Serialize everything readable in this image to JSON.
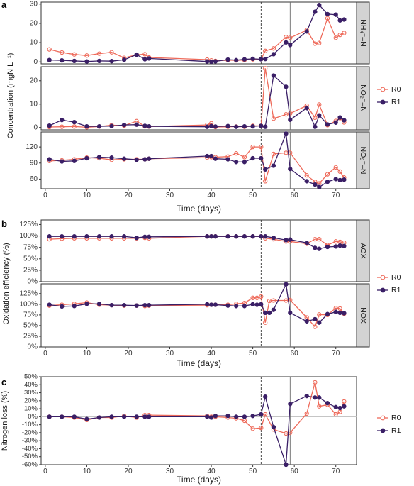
{
  "colors": {
    "R0": "#ee6a5a",
    "R1": "#3a1f66",
    "grid": "#cccccc",
    "strip": "#d3d3d3",
    "axis": "#333333",
    "zeroline": "#bdbdbd"
  },
  "chart_data": [
    {
      "panel": "a",
      "type": "line",
      "ylabel": "Concentration (mgN L⁻¹)",
      "xlabel": "Time (days)",
      "legend": {
        "position": "right",
        "entries": [
          "R0",
          "R1"
        ]
      },
      "vlines": [
        52,
        59
      ],
      "xlim": [
        -1,
        75
      ],
      "xticks": [
        "0",
        "10",
        "20",
        "30",
        "40",
        "50",
        "60",
        "70"
      ],
      "x": [
        1,
        4,
        7,
        10,
        13,
        16,
        19,
        22,
        24,
        25,
        39,
        40,
        41,
        44,
        46,
        48,
        50,
        52,
        53,
        55,
        58,
        59,
        63,
        65,
        66,
        68,
        70,
        71,
        72
      ],
      "facets": [
        {
          "strip": "NH₄⁺–N",
          "ylim": [
            -1,
            31
          ],
          "yticks": [
            "0",
            "10",
            "20",
            "30"
          ],
          "series": [
            {
              "name": "R0",
              "values": [
                6.5,
                4.9,
                3.9,
                3.3,
                4.3,
                5.0,
                2.1,
                3.7,
                4.0,
                2.3,
                1.2,
                0.8,
                0.5,
                0.9,
                0.8,
                1.0,
                1.3,
                1.4,
                5.7,
                7.0,
                12.9,
                12.5,
                16.5,
                9.5,
                9.8,
                22.6,
                12.5,
                14.0,
                15.0
              ]
            },
            {
              "name": "R1",
              "values": [
                1.0,
                0.8,
                0.5,
                0.2,
                0.5,
                0.4,
                1.1,
                3.8,
                1.4,
                1.8,
                0.2,
                0.1,
                0.3,
                1.2,
                0.9,
                1.3,
                1.6,
                1.4,
                1.5,
                4.0,
                10.1,
                8.8,
                15.8,
                26.0,
                29.5,
                24.8,
                24.5,
                21.5,
                22.0
              ]
            }
          ]
        },
        {
          "strip": "NO₂⁻–N",
          "ylim": [
            -1,
            26
          ],
          "yticks": [
            "0",
            "10",
            "20"
          ],
          "series": [
            {
              "name": "R0",
              "values": [
                0.2,
                0.3,
                0.4,
                0.1,
                0.4,
                1.0,
                0.8,
                2.7,
                0.5,
                0.4,
                1.1,
                1.8,
                0.2,
                0.3,
                0.4,
                0.3,
                0.7,
                0.7,
                25.3,
                3.8,
                5.6,
                6.0,
                9.3,
                4.2,
                9.8,
                1.0,
                2.8,
                4.0,
                2.2
              ]
            },
            {
              "name": "R1",
              "values": [
                0.8,
                3.2,
                2.3,
                0.5,
                0.5,
                0.6,
                1.1,
                1.2,
                0.7,
                0.5,
                0.3,
                0.6,
                0.4,
                0.6,
                0.3,
                0.5,
                0.5,
                0.7,
                0.3,
                22.2,
                17.4,
                3.3,
                8.3,
                0.3,
                5.2,
                1.3,
                2.1,
                4.3,
                3.1
              ]
            }
          ]
        },
        {
          "strip": "NO₃⁻–N",
          "ylim": [
            42,
            148
          ],
          "yticks": [
            "60",
            "90",
            "120"
          ],
          "series": [
            {
              "name": "R0",
              "values": [
                94,
                95,
                97,
                100,
                99,
                96,
                97,
                97,
                97,
                98,
                100,
                101,
                101,
                102,
                108,
                101,
                120,
                120,
                56,
                107,
                109,
                109,
                67,
                55,
                52,
                69,
                82,
                74,
                63
              ]
            },
            {
              "name": "R1",
              "values": [
                97,
                93,
                94,
                99,
                101,
                100,
                98,
                96,
                97,
                98,
                103,
                103,
                98,
                97,
                92,
                92,
                99,
                99,
                78,
                85,
                145,
                79,
                56,
                50,
                45,
                55,
                60,
                58,
                59
              ]
            }
          ]
        }
      ]
    },
    {
      "panel": "b",
      "type": "line",
      "ylabel": "Oxidation efficiency (%)",
      "xlabel": "Time (days)",
      "legend": {
        "position": "right",
        "entries": [
          "R0",
          "R1"
        ]
      },
      "vlines": [
        52,
        59
      ],
      "xlim": [
        -1,
        75
      ],
      "xticks": [
        "0",
        "10",
        "20",
        "30",
        "40",
        "50",
        "60",
        "70"
      ],
      "facets": [
        {
          "strip": "AOX",
          "ylim": [
            0,
            135
          ],
          "yticks": [
            "0%",
            "25%",
            "50%",
            "75%",
            "100%",
            "125%"
          ],
          "x": [
            1,
            4,
            7,
            10,
            13,
            16,
            19,
            22,
            24,
            25,
            39,
            40,
            41,
            44,
            46,
            48,
            50,
            52,
            53,
            55,
            58,
            59,
            63,
            65,
            66,
            68,
            70,
            71,
            72
          ],
          "series": [
            {
              "name": "R0",
              "values": [
                93,
                94,
                95,
                95,
                95,
                95,
                95,
                95,
                96,
                95,
                99,
                99,
                99,
                99,
                99,
                99,
                99,
                99,
                95,
                93,
                88,
                88,
                83,
                93,
                93,
                80,
                88,
                87,
                85
              ]
            },
            {
              "name": "R1",
              "values": [
                99,
                99,
                99,
                99,
                99,
                99,
                99,
                96,
                98,
                98,
                99,
                99,
                99,
                99,
                99,
                99,
                99,
                99,
                99,
                96,
                91,
                92,
                85,
                74,
                72,
                76,
                77,
                79,
                78
              ]
            }
          ]
        },
        {
          "strip": "NOX",
          "ylim": [
            0,
            148
          ],
          "yticks": [
            "0%",
            "25%",
            "50%",
            "75%",
            "100%",
            "125%"
          ],
          "x": [
            1,
            4,
            7,
            10,
            13,
            16,
            19,
            22,
            24,
            25,
            39,
            40,
            41,
            44,
            46,
            48,
            50,
            51,
            52,
            53,
            54,
            55,
            58,
            59,
            63,
            65,
            66,
            68,
            70,
            71,
            72
          ],
          "series": [
            {
              "name": "R0",
              "values": [
                97,
                99,
                101,
                104,
                99,
                98,
                97,
                97,
                96,
                97,
                98,
                99,
                99,
                99,
                101,
                103,
                115,
                115,
                118,
                57,
                108,
                109,
                109,
                110,
                69,
                47,
                76,
                75,
                91,
                90,
                78
              ]
            },
            {
              "name": "R1",
              "values": [
                99,
                95,
                96,
                101,
                101,
                98,
                98,
                97,
                98,
                98,
                100,
                99,
                99,
                97,
                96,
                96,
                100,
                99,
                100,
                80,
                80,
                87,
                147,
                80,
                60,
                65,
                57,
                77,
                82,
                80,
                79
              ]
            }
          ]
        }
      ]
    },
    {
      "panel": "c",
      "type": "line",
      "ylabel": "Nitrogen loss (%)",
      "xlabel": "Time (days)",
      "legend": {
        "position": "right",
        "entries": [
          "R0",
          "R1"
        ]
      },
      "vlines": [
        52,
        59
      ],
      "hline": 0,
      "xlim": [
        -1,
        75
      ],
      "xticks": [
        "0",
        "10",
        "20",
        "30",
        "40",
        "50",
        "60",
        "70"
      ],
      "ylim": [
        -60,
        50
      ],
      "yticks": [
        "-60%",
        "-50%",
        "-40%",
        "-30%",
        "-20%",
        "-10%",
        "0%",
        "10%",
        "20%",
        "30%",
        "40%",
        "50%"
      ],
      "x": [
        1,
        4,
        7,
        10,
        13,
        16,
        19,
        22,
        24,
        25,
        39,
        40,
        41,
        44,
        46,
        48,
        50,
        52,
        53,
        55,
        58,
        59,
        63,
        65,
        66,
        68,
        70,
        71,
        72
      ],
      "series": [
        {
          "name": "R0",
          "values": [
            0,
            0,
            -1,
            -4,
            -1,
            -1,
            1,
            -1,
            2,
            2,
            1,
            0,
            0,
            -1,
            -2,
            -5,
            -15,
            -14,
            3,
            -16,
            -21,
            -20,
            4,
            43,
            13,
            15,
            3,
            6,
            19
          ]
        },
        {
          "name": "R1",
          "values": [
            0,
            0,
            0,
            -3,
            -1,
            0,
            0,
            0,
            0,
            0,
            0,
            -1,
            1,
            1,
            0,
            0,
            1,
            3,
            25,
            -13,
            -60,
            16,
            26,
            24,
            24,
            17,
            12,
            11,
            13
          ]
        }
      ]
    }
  ]
}
